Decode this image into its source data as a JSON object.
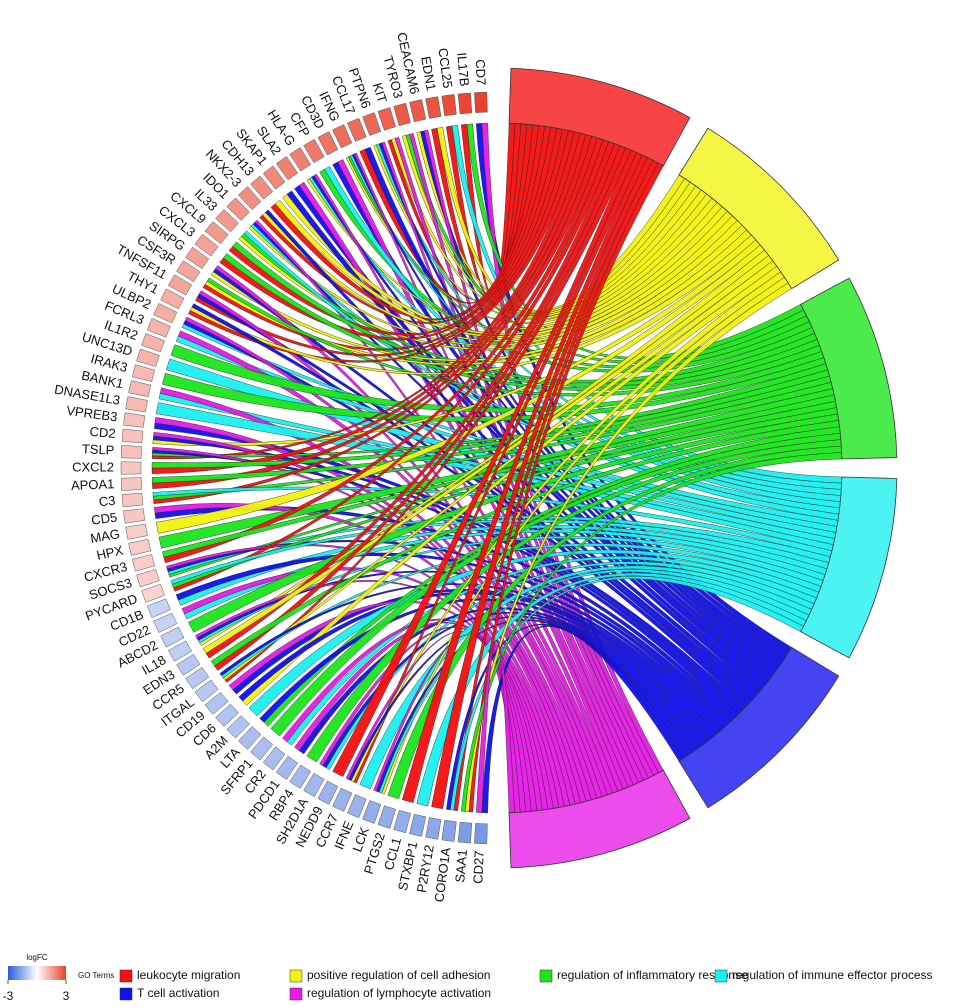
{
  "chart_data": {
    "type": "chord",
    "genes": [
      "CD7",
      "IL17B",
      "CCL25",
      "EDN1",
      "CEACAM6",
      "TYRO3",
      "KIT",
      "PTPN6",
      "CCL17",
      "IFNG",
      "CD3D",
      "CFP",
      "HLA-G",
      "SLA2",
      "SKAP1",
      "CDH13",
      "NKX2-3",
      "IDO1",
      "IL33",
      "CXCL9",
      "CXCL3",
      "SIRPG",
      "CSF3R",
      "TNFSF11",
      "THY1",
      "ULBP2",
      "FCRL3",
      "IL1R2",
      "UNC13D",
      "IRAK3",
      "BANK1",
      "DNASE1L3",
      "VPREB3",
      "CD2",
      "TSLP",
      "CXCL2",
      "APOA1",
      "C3",
      "CD5",
      "MAG",
      "HPX",
      "CXCR3",
      "SOCS3",
      "PYCARD",
      "CD1B",
      "CD22",
      "ABCD2",
      "IL18",
      "EDN3",
      "CCR5",
      "ITGAL",
      "CD19",
      "CD6",
      "A2M",
      "LTA",
      "SFRP1",
      "CR2",
      "PDCD1",
      "RBP4",
      "SH2D1A",
      "NEDD9",
      "CCR7",
      "IFNE",
      "LCK",
      "PTGS2",
      "CCL1",
      "STXBP1",
      "P2RY12",
      "CORO1A",
      "SAA1",
      "CD27"
    ],
    "logFC": [
      3.0,
      2.9,
      2.8,
      2.7,
      2.6,
      2.6,
      2.5,
      2.4,
      2.3,
      2.3,
      2.2,
      2.1,
      2.0,
      2.0,
      1.9,
      1.8,
      1.8,
      1.7,
      1.6,
      1.6,
      1.5,
      1.5,
      1.4,
      1.4,
      1.3,
      1.3,
      1.2,
      1.2,
      1.2,
      1.1,
      1.1,
      1.1,
      1.0,
      1.0,
      1.0,
      0.9,
      0.9,
      0.9,
      0.9,
      0.8,
      0.8,
      0.8,
      0.8,
      0.7,
      -0.8,
      -0.8,
      -0.9,
      -0.9,
      -1.0,
      -1.0,
      -1.0,
      -1.1,
      -1.1,
      -1.1,
      -1.2,
      -1.2,
      -1.2,
      -1.3,
      -1.3,
      -1.3,
      -1.4,
      -1.4,
      -1.4,
      -1.5,
      -1.5,
      -1.5,
      -1.6,
      -1.6,
      -1.7,
      -1.8,
      -1.9
    ],
    "gene_terms": [
      [
        4,
        5
      ],
      [
        0,
        2
      ],
      [
        0,
        3
      ],
      [
        0,
        1
      ],
      [
        1,
        4,
        5
      ],
      [
        1,
        2,
        5
      ],
      [
        0,
        1,
        5
      ],
      [
        1,
        3,
        4,
        5
      ],
      [
        0,
        4
      ],
      [
        1,
        2,
        3,
        4,
        5
      ],
      [
        4,
        5
      ],
      [
        2,
        3
      ],
      [
        1,
        3,
        4,
        5
      ],
      [
        4,
        5
      ],
      [
        1,
        4
      ],
      [
        0,
        1
      ],
      [
        0,
        1,
        4
      ],
      [
        1,
        3,
        4,
        5
      ],
      [
        1,
        2,
        3
      ],
      [
        0,
        2
      ],
      [
        0,
        2
      ],
      [
        1,
        4,
        5
      ],
      [
        0,
        1,
        2
      ],
      [
        0,
        4,
        5
      ],
      [
        0,
        1,
        4
      ],
      [
        3,
        4,
        5
      ],
      [
        3,
        5
      ],
      [
        2
      ],
      [
        3
      ],
      [
        2
      ],
      [
        3,
        5
      ],
      [
        3
      ],
      [
        4,
        5
      ],
      [
        1,
        4,
        5
      ],
      [
        0,
        2,
        4,
        5
      ],
      [
        0,
        2
      ],
      [
        0,
        2
      ],
      [
        0,
        2,
        3
      ],
      [
        4,
        5
      ],
      [
        1
      ],
      [
        2
      ],
      [
        0,
        2
      ],
      [
        2,
        3,
        4,
        5
      ],
      [
        0,
        2,
        3
      ],
      [
        3,
        4
      ],
      [
        3,
        5
      ],
      [
        2
      ],
      [
        1,
        3,
        4,
        5
      ],
      [
        0,
        1
      ],
      [
        0,
        2
      ],
      [
        0,
        1,
        3,
        4
      ],
      [
        4,
        5
      ],
      [
        1,
        4
      ],
      [
        3
      ],
      [
        2,
        4
      ],
      [
        2
      ],
      [
        3,
        5
      ],
      [
        4,
        5
      ],
      [
        2
      ],
      [
        3,
        4,
        5
      ],
      [
        0
      ],
      [
        0,
        1,
        4,
        5
      ],
      [
        3
      ],
      [
        1,
        3,
        4,
        5
      ],
      [
        2
      ],
      [
        0
      ],
      [
        3
      ],
      [
        0
      ],
      [
        0,
        3,
        4
      ],
      [
        0,
        1,
        2
      ],
      [
        4,
        5
      ]
    ],
    "terms": [
      {
        "name": "leukocyte migration",
        "color": "#f50f0f"
      },
      {
        "name": "positive regulation of cell adhesion",
        "color": "#f2f20f"
      },
      {
        "name": "regulation of inflammatory response",
        "color": "#19e619"
      },
      {
        "name": "regulation of immune effector process",
        "color": "#19f0f0"
      },
      {
        "name": "T cell activation",
        "color": "#0f0ff0"
      },
      {
        "name": "regulation of lymphocyte activation",
        "color": "#e619e6"
      }
    ],
    "legend_title": "GO Terms",
    "color_scale": {
      "title": "logFC",
      "lim": [
        -3,
        3
      ],
      "ticks": [
        -3,
        3
      ],
      "low_color": "#2a5bd7",
      "mid_color": "#ffffff",
      "high_color": "#e8412c"
    }
  }
}
